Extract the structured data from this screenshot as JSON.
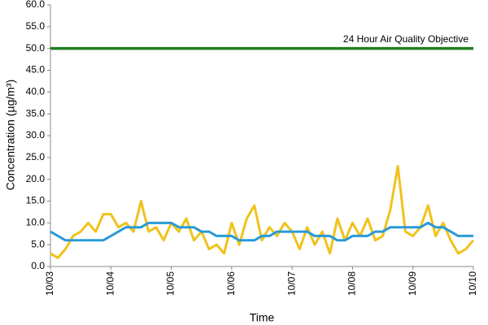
{
  "chart_data": {
    "type": "line",
    "y_label": "Concentration (µg/m³)",
    "x_label": "Time",
    "x": [
      0,
      3,
      6,
      9,
      12,
      15,
      18,
      21,
      24,
      27,
      30,
      33,
      36,
      39,
      42,
      45,
      48,
      51,
      54,
      57,
      60,
      63,
      66,
      69,
      72,
      75,
      78,
      81,
      84,
      87,
      90,
      93,
      96,
      99,
      102,
      105,
      108,
      111,
      114,
      117,
      120,
      123,
      126,
      129,
      132,
      135,
      138,
      141,
      144,
      147,
      150,
      153,
      156,
      159,
      162,
      165,
      168
    ],
    "series": [
      {
        "color": "#f0c21b",
        "width": 3,
        "values": [
          3,
          2,
          4,
          7,
          8,
          10,
          8,
          12,
          12,
          9,
          10,
          8,
          15,
          8,
          9,
          6,
          10,
          8,
          11,
          6,
          8,
          4,
          5,
          3,
          10,
          5,
          11,
          14,
          6,
          9,
          7,
          10,
          8,
          4,
          9,
          5,
          8,
          3,
          11,
          6,
          10,
          7,
          11,
          6,
          7,
          13,
          23,
          8,
          7,
          9,
          14,
          7,
          10,
          6,
          3,
          4,
          6
        ]
      },
      {
        "color": "#2a9ad8",
        "width": 3,
        "values": [
          8,
          7,
          6,
          6,
          6,
          6,
          6,
          6,
          7,
          8,
          9,
          9,
          9,
          10,
          10,
          10,
          10,
          9,
          9,
          9,
          8,
          8,
          7,
          7,
          7,
          6,
          6,
          6,
          7,
          7,
          8,
          8,
          8,
          8,
          8,
          7,
          7,
          7,
          6,
          6,
          7,
          7,
          7,
          8,
          8,
          9,
          9,
          9,
          9,
          9,
          10,
          9,
          9,
          8,
          7,
          7,
          7
        ]
      },
      {
        "name": "24 Hour Air Quality Objective",
        "color": "#1e7d1e",
        "width": 3.5,
        "x": [
          0,
          168
        ],
        "values": [
          50,
          50
        ]
      }
    ],
    "xlim": [
      0,
      168
    ],
    "xticks": [
      {
        "value": 0,
        "label": "10/03"
      },
      {
        "value": 24,
        "label": "10/04"
      },
      {
        "value": 48,
        "label": "10/05"
      },
      {
        "value": 72,
        "label": "10/06"
      },
      {
        "value": 96,
        "label": "10/07"
      },
      {
        "value": 120,
        "label": "10/08"
      },
      {
        "value": 144,
        "label": "10/09"
      },
      {
        "value": 168,
        "label": "10/10"
      }
    ],
    "ylim": [
      0,
      60
    ],
    "yticks": [
      {
        "value": 0,
        "label": "0.0"
      },
      {
        "value": 5,
        "label": "5.0"
      },
      {
        "value": 10,
        "label": "10.0"
      },
      {
        "value": 15,
        "label": "15.0"
      },
      {
        "value": 20,
        "label": "20.0"
      },
      {
        "value": 25,
        "label": "25.0"
      },
      {
        "value": 30,
        "label": "30.0"
      },
      {
        "value": 35,
        "label": "35.0"
      },
      {
        "value": 40,
        "label": "40.0"
      },
      {
        "value": 45,
        "label": "45.0"
      },
      {
        "value": 50,
        "label": "50.0"
      },
      {
        "value": 55,
        "label": "55.0"
      },
      {
        "value": 60,
        "label": "60.0"
      }
    ],
    "grid": false
  }
}
